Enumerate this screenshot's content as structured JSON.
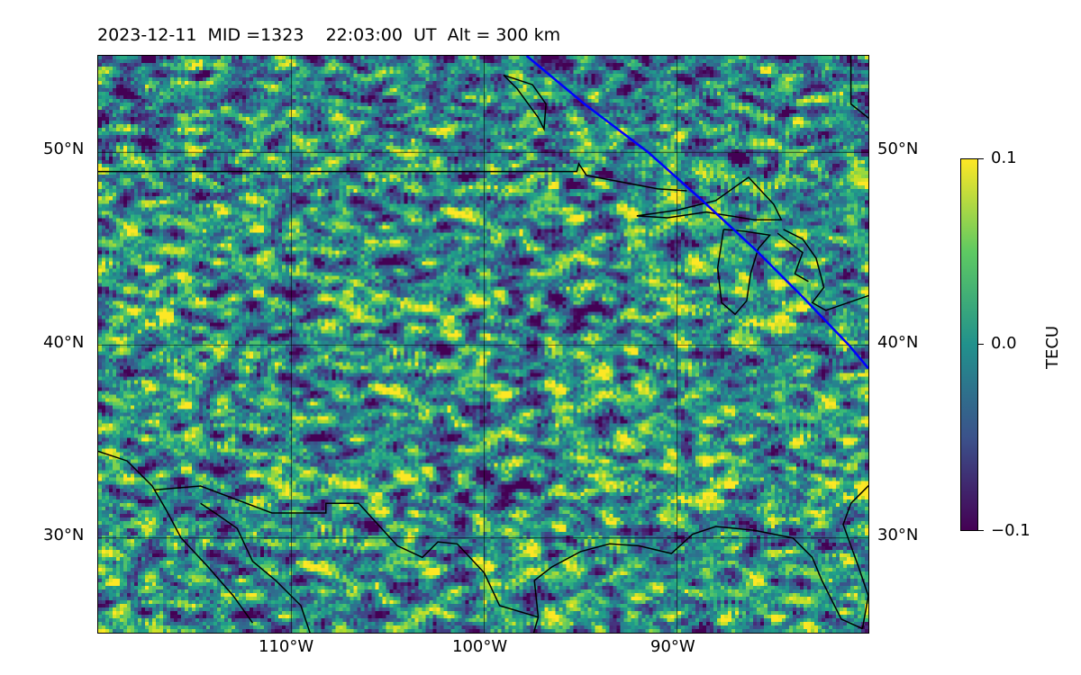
{
  "title": "2023-12-11  MID =1323    22:03:00  UT  Alt = 300 km",
  "map": {
    "lat_labels": [
      "50°N",
      "40°N",
      "30°N"
    ],
    "lon_labels": [
      "110°W",
      "100°W",
      "90°W"
    ],
    "lon_range": [
      -120,
      -80
    ],
    "lat_range": [
      25,
      55
    ],
    "projection_note_lines": "lat/lon gridlines",
    "track_color": "#0000ff",
    "coast_color": "#000000"
  },
  "colorbar": {
    "title": "TECU",
    "ticks": [
      "0.1",
      "0.0",
      "−0.1"
    ],
    "range": [
      -0.1,
      0.1
    ],
    "colormap": "viridis"
  },
  "chart_data": {
    "type": "heatmap",
    "title": "2023-12-11  MID =1323    22:03:00  UT  Alt = 300 km",
    "xlabel": "",
    "ylabel": "",
    "xlim": [
      -120,
      -80
    ],
    "ylim": [
      25,
      55
    ],
    "x_ticks": [
      -110,
      -100,
      -90
    ],
    "y_ticks": [
      30,
      40,
      50
    ],
    "colorbar_label": "TECU",
    "value_range": [
      -0.1,
      0.1
    ],
    "satellite_track": [
      [
        -97.8,
        55
      ],
      [
        -94.8,
        52.5
      ],
      [
        -91.5,
        50
      ],
      [
        -88.7,
        47.5
      ],
      [
        -86,
        45
      ],
      [
        -83.5,
        42.5
      ],
      [
        -81.1,
        40
      ],
      [
        -80.1,
        38.8
      ]
    ],
    "grid": true
  }
}
